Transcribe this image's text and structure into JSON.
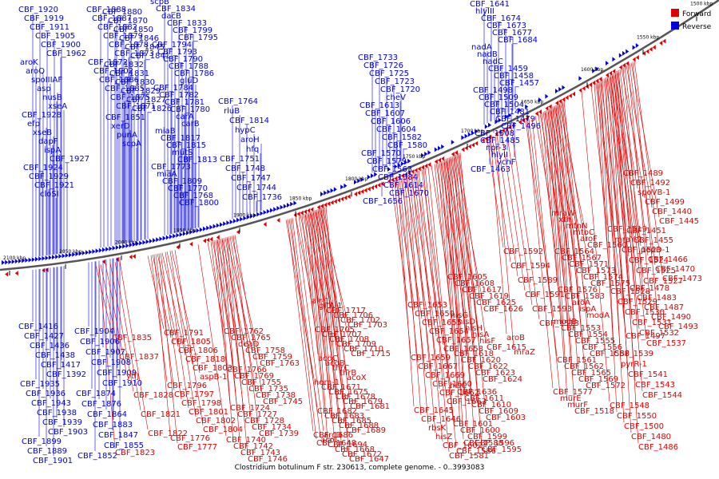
{
  "caption": "Clostridium botulinum F str. 230613, complete genome. - 0..3993083",
  "legend": [
    {
      "label": "Forward",
      "color": "#e00000"
    },
    {
      "label": "Reverse",
      "color": "#0000e0"
    }
  ],
  "ticks": [
    "2100 kbp",
    "2050 kbp",
    "2000 kbp",
    "1950 kbp",
    "1900 kbp",
    "1850 kbp",
    "1800 kbp",
    "1750 kbp",
    "1700 kbp",
    "1650 kbp",
    "1600 kbp",
    "1550 kbp",
    "1500 kbp"
  ],
  "reverse_labels": [
    "CBF_1920",
    "CBF_1919",
    "CBF_1911",
    "CBF_1905",
    "CBF_1900",
    "CBF_1962",
    "aroK",
    "aroQ",
    "spoIIIAF",
    "asp",
    "nusB",
    "xseA",
    "CBF_1928",
    "efp",
    "xseB",
    "dapF",
    "ispA",
    "CBF_1927",
    "CBF_1924",
    "CBF_1929",
    "CBF_1921",
    "cloSI",
    "CBF_1888",
    "CBF_1887",
    "CBF_1882",
    "CBF_1879",
    "CBF_1878",
    "CBF_1873",
    "CBF_1872",
    "CBF_1902",
    "CBF_1886",
    "CBF_1885",
    "CBF_1875",
    "CBF_1871",
    "CBF_1880",
    "CBF_1870",
    "CBF_1850",
    "CBF_1846",
    "CBF_1845",
    "CBF_1841",
    "CBF_1832",
    "CBF_1831",
    "CBF_1830",
    "CBF_1829",
    "CBF_1827",
    "CBF_1826",
    "CBF_1851",
    "xerD",
    "punA",
    "scpA",
    "scpB",
    "CBF_1834",
    "dacB",
    "CBF_1833",
    "CBF_1799",
    "CBF_1795",
    "CBF_1794",
    "CBF_1793",
    "CBF_1790",
    "CBF_1788",
    "CBF_1786",
    "gluD",
    "CBF_1784",
    "CBF_1782",
    "CBF_1781",
    "CBF_1780",
    "carA",
    "carB",
    "miaB",
    "CBF_1817",
    "CBF_1815",
    "mutS",
    "CBF_1813",
    "CBF_1773",
    "miaA",
    "CBF_1809",
    "CBF_1770",
    "CBF_1768",
    "CBF_1800",
    "CBF_1764",
    "rluB",
    "CBF_1814",
    "hypC",
    "aroH",
    "hfq",
    "CBF_1751",
    "CBF_1748",
    "CBF_1747",
    "CBF_1744",
    "CBF_1736",
    "CBF_1733",
    "CBF_1726",
    "CBF_1725",
    "CBF_1723",
    "CBF_1720",
    "cheV",
    "CBF_1613",
    "CBF_1607",
    "CBF_1606",
    "CBF_1604",
    "CBF_1582",
    "CBF_1580",
    "CBF_1570",
    "CBF_1579",
    "CBF_1563",
    "CBF_1584",
    "CBF_1614",
    "CBF_1670",
    "CBF_1656",
    "CBF_1641",
    "hlyIII",
    "CBF_1674",
    "CBF_1673",
    "CBF_1677",
    "CBF_1684",
    "nadA",
    "nadB",
    "nadC",
    "CBF_1459",
    "CBF_1458",
    "CBF_1457",
    "CBF_1498",
    "CBF_1509",
    "CBF_1504",
    "CBF_1481",
    "CBF_1479",
    "CBF_1496",
    "CBF_1508",
    "CBF_1485",
    "npr-3",
    "hlyII",
    "ychF",
    "CBF_1463",
    "CBF_1416",
    "CBF_1427",
    "CBF_1436",
    "CBF_1438",
    "CBF_1417",
    "CBF_1392",
    "CBF_1935",
    "CBF_1936",
    "CBF_1943",
    "CBF_1938",
    "CBF_1939",
    "CBF_1903",
    "CBF_1899",
    "CBF_1889",
    "CBF_1901",
    "CBF_1904",
    "CBF_1906",
    "CBF_1907",
    "CBF_1908",
    "CBF_1909",
    "CBF_1910",
    "CBF_1874",
    "CBF_1876",
    "CBF_1864",
    "CBF_1883",
    "CBF_1847",
    "CBF_1855",
    "CBF_1852",
    "CBF_1856",
    "CBF_1857",
    "CBF_1858",
    "CBF_1859",
    "CBF_1860",
    "CBF_1861"
  ],
  "forward_labels": [
    "CBF_1835",
    "CBF_1837",
    "ytfJ",
    "CBF_1828",
    "CBF_1821",
    "CBF_1822",
    "CBF_1823",
    "CBF_1791",
    "CBF_1805",
    "CBF_1806",
    "CBF_1818",
    "CBF_1803",
    "aspB-1",
    "CBF_1796",
    "CBF_1797",
    "CBF_1798",
    "CBF_1801",
    "CBF_1802",
    "CBF_1804",
    "CBF_1776",
    "CBF_1777",
    "CBF_1762",
    "CBF_1765",
    "deaD",
    "CBF_1758",
    "CBF_1759",
    "CBF_1763",
    "CBF_1766",
    "CBF_1769",
    "CBF_1755",
    "CBF_1735",
    "CBF_1738",
    "CBF_1745",
    "CBF_1724",
    "CBF_1727",
    "CBF_1728",
    "CBF_1734",
    "CBF_1739",
    "CBF_1740",
    "CBF_1742",
    "CBF_1743",
    "CBF_1746",
    "alr-1",
    "gltA-1",
    "CBF_1717",
    "CBF_1706",
    "CBF_1702",
    "CBF_1703",
    "CBF_1705",
    "CBF_1707",
    "CBF_1708",
    "CBF_1709",
    "CBF_1710",
    "CBF_1715",
    "acoC",
    "acoB",
    "thrC",
    "thrB",
    "acoX",
    "hom-1",
    "CBF_1671",
    "CBF_1675",
    "CBF_1678",
    "CBF_1679",
    "CBF_1681",
    "CBF_1682",
    "CBF_1683",
    "CBF_1685",
    "CBF_1688",
    "CBF_1689",
    "CBF_1686",
    "acoL",
    "CBF_1694",
    "CBF_1668",
    "CBF_1672",
    "CBF_1647",
    "CBF_1648",
    "arcD",
    "CBF_1653",
    "CBF_1650",
    "CBF_1655",
    "CBF_1654",
    "CBF_1657",
    "CBF_1658",
    "CBF_1659",
    "CBF_1667",
    "CBF_1669",
    "CBF_1660",
    "CBF_1662",
    "CBF_1663",
    "CBF_1645",
    "CBF_1646",
    "rbsK",
    "hisZ",
    "CBF_1602",
    "CBF_1605",
    "CBF_1608",
    "CBF_1617",
    "CBF_1619",
    "CBF_1625",
    "CBF_1626",
    "hisG",
    "hisD",
    "hisH",
    "hisA",
    "hisF",
    "CBF_1615",
    "CBF_1618",
    "CBF_1620",
    "CBF_1622",
    "CBF_1623",
    "CBF_1624",
    "hisC",
    "CBF_1636",
    "CBF_1611",
    "CBF_1610",
    "CBF_1609",
    "CBF_1603",
    "CBF_1601",
    "CBF_1600",
    "CBF_1599",
    "CBF_1596",
    "CBF_1595",
    "CBF_1581",
    "CBF_1586",
    "CBF_1588",
    "CBF_1592",
    "CBF_1594",
    "CBF_1589",
    "CBF_1591",
    "CBF_1593",
    "CBF_1513",
    "aroB",
    "mraZ",
    "mraW",
    "xth",
    "mtnN",
    "mtbC",
    "aroF",
    "CBF_1560",
    "CBF_1564",
    "CBF_1567",
    "CBF_1571",
    "CBF_1573",
    "CBF_1574",
    "CBF_1575",
    "CBF_1576",
    "CBF_1583",
    "aroA",
    "ispA",
    "modA",
    "modB",
    "CBF_1553",
    "CBF_1554",
    "CBF_1555",
    "CBF_1556",
    "CBF_1558",
    "CBF_1561",
    "CBF_1562",
    "CBF_1565",
    "CBF_1569",
    "CBF_1572",
    "CBF_1577",
    "murE",
    "murF",
    "CBF_1518",
    "CBF_1519",
    "mraY-2",
    "CBF_1523",
    "CBF_1524",
    "CBF_1525",
    "CBF_1527",
    "CBF_1528",
    "CBF_1529",
    "CBF_1530",
    "CBF_1531",
    "CBF_1532",
    "CBF_1537",
    "CBF_1539",
    "pyrR-1",
    "CBF_1541",
    "CBF_1543",
    "CBF_1544",
    "CBF_1548",
    "CBF_1550",
    "CBF_1500",
    "CBF_1480",
    "CBF_1486",
    "CBF_1489",
    "CBF_1492",
    "spoVB-1",
    "CBF_1499",
    "CBF_1440",
    "CBF_1445",
    "CBF_1451",
    "CBF_1455",
    "pepD-1",
    "CBF_1466",
    "CBF_1470",
    "CBF_1473",
    "CBF_1478",
    "CBF_1483",
    "CBF_1487",
    "CBF_1490",
    "CBF_1493",
    "CBF_1497"
  ]
}
